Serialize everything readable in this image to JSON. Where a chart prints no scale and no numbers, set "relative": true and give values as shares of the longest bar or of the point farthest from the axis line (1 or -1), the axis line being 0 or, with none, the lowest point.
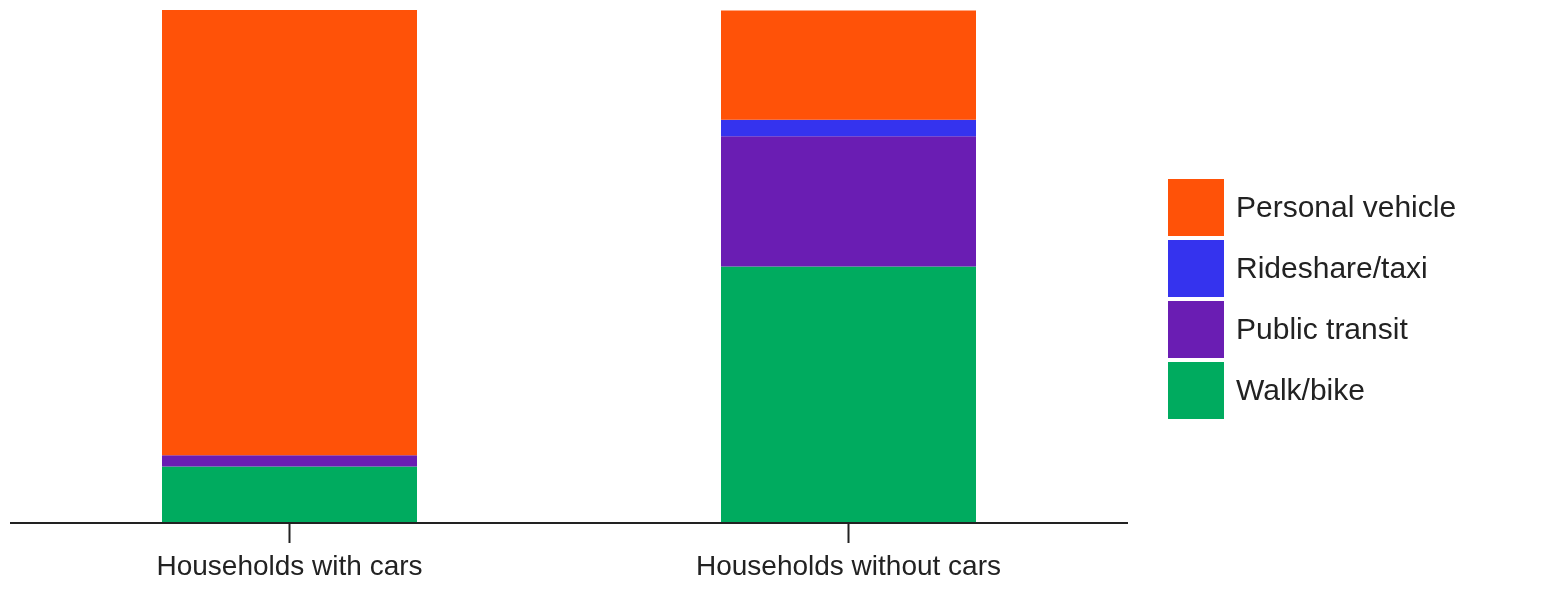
{
  "chart_data": {
    "type": "bar",
    "relative": true,
    "stacked": true,
    "legend": "right",
    "categories": [
      "Households with cars",
      "Households without cars"
    ],
    "series": [
      {
        "name": "Walk/bike",
        "color": "#00ab5f",
        "values": [
          0.11,
          0.5
        ]
      },
      {
        "name": "Public transit",
        "color": "#6a1db3",
        "values": [
          0.022,
          0.254
        ]
      },
      {
        "name": "Rideshare/taxi",
        "color": "#3533ee",
        "values": [
          0,
          0.032
        ]
      },
      {
        "name": "Personal vehicle",
        "color": "#ff5208",
        "values": [
          0.868,
          0.213
        ]
      }
    ]
  }
}
